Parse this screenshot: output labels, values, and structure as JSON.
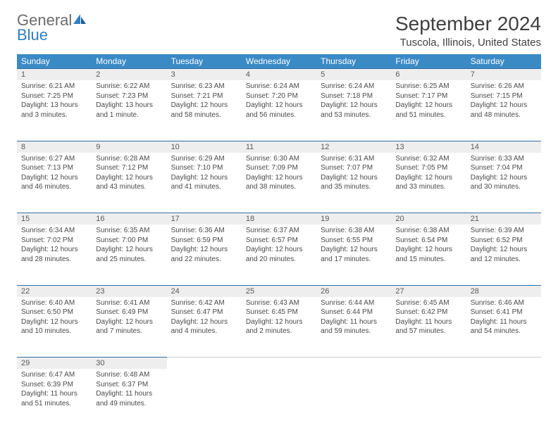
{
  "brand": {
    "part1": "General",
    "part2": "Blue"
  },
  "title": "September 2024",
  "location": "Tuscola, Illinois, United States",
  "colors": {
    "header_bg": "#3a8ac6",
    "header_text": "#ffffff",
    "daynum_bg": "#eeeeee",
    "daynum_border": "#2f6fa3",
    "body_text": "#4a4a4a",
    "title_text": "#404040",
    "logo_gray": "#6b6b6b",
    "logo_blue": "#2f7fbf",
    "page_bg": "#ffffff"
  },
  "typography": {
    "title_fontsize": 28,
    "location_fontsize": 15,
    "weekday_fontsize": 12,
    "daynum_fontsize": 11,
    "cell_fontsize": 10
  },
  "weekdays": [
    "Sunday",
    "Monday",
    "Tuesday",
    "Wednesday",
    "Thursday",
    "Friday",
    "Saturday"
  ],
  "weeks": [
    [
      {
        "day": "1",
        "sunrise": "Sunrise: 6:21 AM",
        "sunset": "Sunset: 7:25 PM",
        "daylight": "Daylight: 13 hours and 3 minutes."
      },
      {
        "day": "2",
        "sunrise": "Sunrise: 6:22 AM",
        "sunset": "Sunset: 7:23 PM",
        "daylight": "Daylight: 13 hours and 1 minute."
      },
      {
        "day": "3",
        "sunrise": "Sunrise: 6:23 AM",
        "sunset": "Sunset: 7:21 PM",
        "daylight": "Daylight: 12 hours and 58 minutes."
      },
      {
        "day": "4",
        "sunrise": "Sunrise: 6:24 AM",
        "sunset": "Sunset: 7:20 PM",
        "daylight": "Daylight: 12 hours and 56 minutes."
      },
      {
        "day": "5",
        "sunrise": "Sunrise: 6:24 AM",
        "sunset": "Sunset: 7:18 PM",
        "daylight": "Daylight: 12 hours and 53 minutes."
      },
      {
        "day": "6",
        "sunrise": "Sunrise: 6:25 AM",
        "sunset": "Sunset: 7:17 PM",
        "daylight": "Daylight: 12 hours and 51 minutes."
      },
      {
        "day": "7",
        "sunrise": "Sunrise: 6:26 AM",
        "sunset": "Sunset: 7:15 PM",
        "daylight": "Daylight: 12 hours and 48 minutes."
      }
    ],
    [
      {
        "day": "8",
        "sunrise": "Sunrise: 6:27 AM",
        "sunset": "Sunset: 7:13 PM",
        "daylight": "Daylight: 12 hours and 46 minutes."
      },
      {
        "day": "9",
        "sunrise": "Sunrise: 6:28 AM",
        "sunset": "Sunset: 7:12 PM",
        "daylight": "Daylight: 12 hours and 43 minutes."
      },
      {
        "day": "10",
        "sunrise": "Sunrise: 6:29 AM",
        "sunset": "Sunset: 7:10 PM",
        "daylight": "Daylight: 12 hours and 41 minutes."
      },
      {
        "day": "11",
        "sunrise": "Sunrise: 6:30 AM",
        "sunset": "Sunset: 7:09 PM",
        "daylight": "Daylight: 12 hours and 38 minutes."
      },
      {
        "day": "12",
        "sunrise": "Sunrise: 6:31 AM",
        "sunset": "Sunset: 7:07 PM",
        "daylight": "Daylight: 12 hours and 35 minutes."
      },
      {
        "day": "13",
        "sunrise": "Sunrise: 6:32 AM",
        "sunset": "Sunset: 7:05 PM",
        "daylight": "Daylight: 12 hours and 33 minutes."
      },
      {
        "day": "14",
        "sunrise": "Sunrise: 6:33 AM",
        "sunset": "Sunset: 7:04 PM",
        "daylight": "Daylight: 12 hours and 30 minutes."
      }
    ],
    [
      {
        "day": "15",
        "sunrise": "Sunrise: 6:34 AM",
        "sunset": "Sunset: 7:02 PM",
        "daylight": "Daylight: 12 hours and 28 minutes."
      },
      {
        "day": "16",
        "sunrise": "Sunrise: 6:35 AM",
        "sunset": "Sunset: 7:00 PM",
        "daylight": "Daylight: 12 hours and 25 minutes."
      },
      {
        "day": "17",
        "sunrise": "Sunrise: 6:36 AM",
        "sunset": "Sunset: 6:59 PM",
        "daylight": "Daylight: 12 hours and 22 minutes."
      },
      {
        "day": "18",
        "sunrise": "Sunrise: 6:37 AM",
        "sunset": "Sunset: 6:57 PM",
        "daylight": "Daylight: 12 hours and 20 minutes."
      },
      {
        "day": "19",
        "sunrise": "Sunrise: 6:38 AM",
        "sunset": "Sunset: 6:55 PM",
        "daylight": "Daylight: 12 hours and 17 minutes."
      },
      {
        "day": "20",
        "sunrise": "Sunrise: 6:38 AM",
        "sunset": "Sunset: 6:54 PM",
        "daylight": "Daylight: 12 hours and 15 minutes."
      },
      {
        "day": "21",
        "sunrise": "Sunrise: 6:39 AM",
        "sunset": "Sunset: 6:52 PM",
        "daylight": "Daylight: 12 hours and 12 minutes."
      }
    ],
    [
      {
        "day": "22",
        "sunrise": "Sunrise: 6:40 AM",
        "sunset": "Sunset: 6:50 PM",
        "daylight": "Daylight: 12 hours and 10 minutes."
      },
      {
        "day": "23",
        "sunrise": "Sunrise: 6:41 AM",
        "sunset": "Sunset: 6:49 PM",
        "daylight": "Daylight: 12 hours and 7 minutes."
      },
      {
        "day": "24",
        "sunrise": "Sunrise: 6:42 AM",
        "sunset": "Sunset: 6:47 PM",
        "daylight": "Daylight: 12 hours and 4 minutes."
      },
      {
        "day": "25",
        "sunrise": "Sunrise: 6:43 AM",
        "sunset": "Sunset: 6:45 PM",
        "daylight": "Daylight: 12 hours and 2 minutes."
      },
      {
        "day": "26",
        "sunrise": "Sunrise: 6:44 AM",
        "sunset": "Sunset: 6:44 PM",
        "daylight": "Daylight: 11 hours and 59 minutes."
      },
      {
        "day": "27",
        "sunrise": "Sunrise: 6:45 AM",
        "sunset": "Sunset: 6:42 PM",
        "daylight": "Daylight: 11 hours and 57 minutes."
      },
      {
        "day": "28",
        "sunrise": "Sunrise: 6:46 AM",
        "sunset": "Sunset: 6:41 PM",
        "daylight": "Daylight: 11 hours and 54 minutes."
      }
    ],
    [
      {
        "day": "29",
        "sunrise": "Sunrise: 6:47 AM",
        "sunset": "Sunset: 6:39 PM",
        "daylight": "Daylight: 11 hours and 51 minutes."
      },
      {
        "day": "30",
        "sunrise": "Sunrise: 6:48 AM",
        "sunset": "Sunset: 6:37 PM",
        "daylight": "Daylight: 11 hours and 49 minutes."
      },
      null,
      null,
      null,
      null,
      null
    ]
  ]
}
